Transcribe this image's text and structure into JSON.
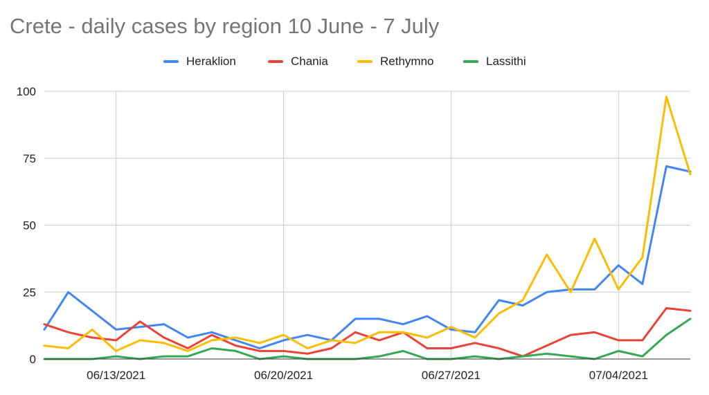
{
  "chart_data": {
    "type": "line",
    "title": "Crete - daily cases by region 10 June - 7 July",
    "xlabel": "",
    "ylabel": "",
    "x": [
      "2021-06-10",
      "2021-06-11",
      "2021-06-12",
      "2021-06-13",
      "2021-06-14",
      "2021-06-15",
      "2021-06-16",
      "2021-06-17",
      "2021-06-18",
      "2021-06-19",
      "2021-06-20",
      "2021-06-21",
      "2021-06-22",
      "2021-06-23",
      "2021-06-24",
      "2021-06-25",
      "2021-06-26",
      "2021-06-27",
      "2021-06-28",
      "2021-06-29",
      "2021-06-30",
      "2021-07-01",
      "2021-07-02",
      "2021-07-03",
      "2021-07-04",
      "2021-07-05",
      "2021-07-06",
      "2021-07-07"
    ],
    "x_ticks": [
      "06/13/2021",
      "06/20/2021",
      "06/27/2021",
      "07/04/2021"
    ],
    "ylim": [
      0,
      100
    ],
    "y_ticks": [
      "0",
      "25",
      "50",
      "75",
      "100"
    ],
    "grid": true,
    "legend_position": "top",
    "series": [
      {
        "name": "Heraklion",
        "color": "#4285f4",
        "values": [
          11,
          25,
          18,
          11,
          12,
          13,
          8,
          10,
          7,
          4,
          7,
          9,
          7,
          15,
          15,
          13,
          16,
          11,
          10,
          22,
          20,
          25,
          26,
          26,
          35,
          28,
          72,
          70
        ]
      },
      {
        "name": "Chania",
        "color": "#ea4335",
        "values": [
          13,
          10,
          8,
          7,
          14,
          8,
          4,
          9,
          5,
          3,
          3,
          2,
          4,
          10,
          7,
          10,
          4,
          4,
          6,
          4,
          1,
          5,
          9,
          10,
          7,
          7,
          19,
          18
        ]
      },
      {
        "name": "Rethymno",
        "color": "#fbbc04",
        "values": [
          5,
          4,
          11,
          3,
          7,
          6,
          3,
          7,
          8,
          6,
          9,
          4,
          7,
          6,
          10,
          10,
          8,
          12,
          8,
          17,
          22,
          39,
          25,
          45,
          26,
          38,
          98,
          69
        ]
      },
      {
        "name": "Lassithi",
        "color": "#34a853",
        "values": [
          0,
          0,
          0,
          1,
          0,
          1,
          1,
          4,
          3,
          0,
          1,
          0,
          0,
          0,
          1,
          3,
          0,
          0,
          1,
          0,
          1,
          2,
          1,
          0,
          3,
          1,
          9,
          15
        ]
      }
    ]
  }
}
